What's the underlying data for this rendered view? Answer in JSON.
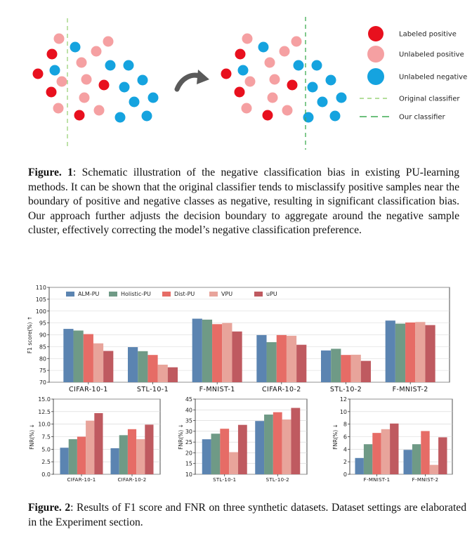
{
  "figure1": {
    "legend": [
      {
        "label": "Labeled positive",
        "color": "#e8101e"
      },
      {
        "label": "Unlabeled positive",
        "color": "#f5a0a2"
      },
      {
        "label": "Unlabeled negative",
        "color": "#15a3df"
      },
      {
        "label": "Original classifier",
        "color": "#9bd37a"
      },
      {
        "label": "Our classifier",
        "color": "#3eac52"
      }
    ],
    "arrow_icon": "curved-arrow-icon",
    "caption_label": "Figure. 1",
    "caption_text": ": Schematic illustration of the negative classification bias in existing PU-learning methods. It can be shown that the original classifier tends to misclassify positive samples near the boundary of positive and negative classes as negative, resulting in significant classification bias. Our approach further adjusts the decision boundary to aggregate around the negative sample cluster, effectively correcting the model’s negative classification preference."
  },
  "figure2": {
    "caption_label": "Figure. 2",
    "caption_text": ": Results of F1 score and FNR on three synthetic datasets. Dataset settings are elaborated in the Experiment section."
  },
  "colors": {
    "ALM-PU": "#5b84b1",
    "Holistic-PU": "#6f9a86",
    "Dist-PU": "#e66c66",
    "VPU": "#e8a49b",
    "uPU": "#bf5a60"
  },
  "chart_data": [
    {
      "type": "bar",
      "ylabel": "F1 score(%) ↑",
      "ylim": [
        70,
        110
      ],
      "yticks": [
        70,
        75,
        80,
        85,
        90,
        95,
        100,
        105,
        110
      ],
      "legend_position": "top",
      "categories": [
        "CIFAR-10-1",
        "STL-10-1",
        "F-MNIST-1",
        "CIFAR-10-2",
        "STL-10-2",
        "F-MNIST-2"
      ],
      "series": [
        {
          "name": "ALM-PU",
          "values": [
            92.5,
            84.8,
            96.8,
            89.9,
            83.4,
            96.0
          ]
        },
        {
          "name": "Holistic-PU",
          "values": [
            91.8,
            83.1,
            96.4,
            86.9,
            84.1,
            94.7
          ]
        },
        {
          "name": "Dist-PU",
          "values": [
            90.3,
            81.5,
            94.5,
            89.9,
            81.5,
            95.2
          ]
        },
        {
          "name": "VPU",
          "values": [
            86.4,
            77.4,
            95.0,
            89.6,
            81.6,
            95.4
          ]
        },
        {
          "name": "uPU",
          "values": [
            83.2,
            76.3,
            91.4,
            85.8,
            79.0,
            94.1
          ]
        }
      ]
    },
    {
      "type": "bar",
      "ylabel": "FNR(%) ↓",
      "ylim": [
        0,
        15
      ],
      "yticks": [
        0.0,
        2.5,
        5.0,
        7.5,
        10.0,
        12.5,
        15.0
      ],
      "categories": [
        "CIFAR-10-1",
        "CIFAR-10-2"
      ],
      "series": [
        {
          "name": "ALM-PU",
          "values": [
            5.3,
            5.2
          ]
        },
        {
          "name": "Holistic-PU",
          "values": [
            7.0,
            7.8
          ]
        },
        {
          "name": "Dist-PU",
          "values": [
            7.5,
            9.0
          ]
        },
        {
          "name": "VPU",
          "values": [
            10.7,
            7.0
          ]
        },
        {
          "name": "uPU",
          "values": [
            12.2,
            9.9
          ]
        }
      ]
    },
    {
      "type": "bar",
      "ylabel": "FNR(%) ↓",
      "ylim": [
        10,
        45
      ],
      "yticks": [
        10,
        15,
        20,
        25,
        30,
        35,
        40,
        45
      ],
      "categories": [
        "STL-10-1",
        "STL-10-2"
      ],
      "series": [
        {
          "name": "ALM-PU",
          "values": [
            26.3,
            34.8
          ]
        },
        {
          "name": "Holistic-PU",
          "values": [
            28.9,
            37.8
          ]
        },
        {
          "name": "Dist-PU",
          "values": [
            31.2,
            38.9
          ]
        },
        {
          "name": "VPU",
          "values": [
            20.3,
            35.5
          ]
        },
        {
          "name": "uPU",
          "values": [
            33.0,
            40.9
          ]
        }
      ]
    },
    {
      "type": "bar",
      "ylabel": "FNR(%) ↓",
      "ylim": [
        0,
        12
      ],
      "yticks": [
        0,
        2,
        4,
        6,
        8,
        10,
        12
      ],
      "categories": [
        "F-MNIST-1",
        "F-MNIST-2"
      ],
      "series": [
        {
          "name": "ALM-PU",
          "values": [
            2.6,
            3.9
          ]
        },
        {
          "name": "Holistic-PU",
          "values": [
            4.8,
            4.8
          ]
        },
        {
          "name": "Dist-PU",
          "values": [
            6.6,
            6.9
          ]
        },
        {
          "name": "VPU",
          "values": [
            7.2,
            1.5
          ]
        },
        {
          "name": "uPU",
          "values": [
            8.1,
            5.9
          ]
        }
      ]
    }
  ]
}
